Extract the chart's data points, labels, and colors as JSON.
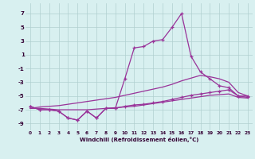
{
  "x": [
    0,
    1,
    2,
    3,
    4,
    5,
    6,
    7,
    8,
    9,
    10,
    11,
    12,
    13,
    14,
    15,
    16,
    17,
    18,
    19,
    20,
    21,
    22,
    23
  ],
  "y_jagged": [
    -6.5,
    -7.0,
    -7.0,
    -7.2,
    -8.2,
    -8.5,
    -7.2,
    -8.2,
    -6.8,
    -6.8,
    -6.5,
    -6.3,
    -6.2,
    -6.0,
    -5.8,
    -5.5,
    -5.2,
    -4.9,
    -4.7,
    -4.5,
    -4.3,
    -4.1,
    -5.0,
    -5.2
  ],
  "y_main": [
    -6.5,
    -7.0,
    -7.0,
    -7.2,
    -8.2,
    -8.5,
    -7.2,
    -8.2,
    -6.8,
    -6.8,
    -2.5,
    2.0,
    2.2,
    3.0,
    3.2,
    5.0,
    7.0,
    0.8,
    -1.5,
    -2.5,
    -3.5,
    -3.8,
    -5.0,
    -5.0
  ],
  "y_upper_band": [
    -6.8,
    -6.6,
    -6.5,
    -6.4,
    -6.2,
    -6.0,
    -5.8,
    -5.6,
    -5.4,
    -5.2,
    -4.9,
    -4.6,
    -4.3,
    -4.0,
    -3.7,
    -3.3,
    -2.8,
    -2.4,
    -2.0,
    -2.2,
    -2.5,
    -3.0,
    -4.5,
    -5.0
  ],
  "y_lower_band": [
    -6.8,
    -6.8,
    -6.9,
    -7.0,
    -7.0,
    -7.0,
    -7.0,
    -6.9,
    -6.8,
    -6.7,
    -6.6,
    -6.5,
    -6.3,
    -6.1,
    -5.9,
    -5.7,
    -5.5,
    -5.3,
    -5.1,
    -4.9,
    -4.8,
    -4.7,
    -5.2,
    -5.3
  ],
  "color": "#993399",
  "bg_color": "#d8f0f0",
  "grid_color": "#b0d0d0",
  "yticks": [
    -9,
    -7,
    -5,
    -3,
    -1,
    1,
    3,
    5,
    7
  ],
  "xlabel": "Windchill (Refroidissement éolien,°C)",
  "xlim": [
    -0.5,
    23.5
  ],
  "ylim": [
    -10,
    8.5
  ]
}
